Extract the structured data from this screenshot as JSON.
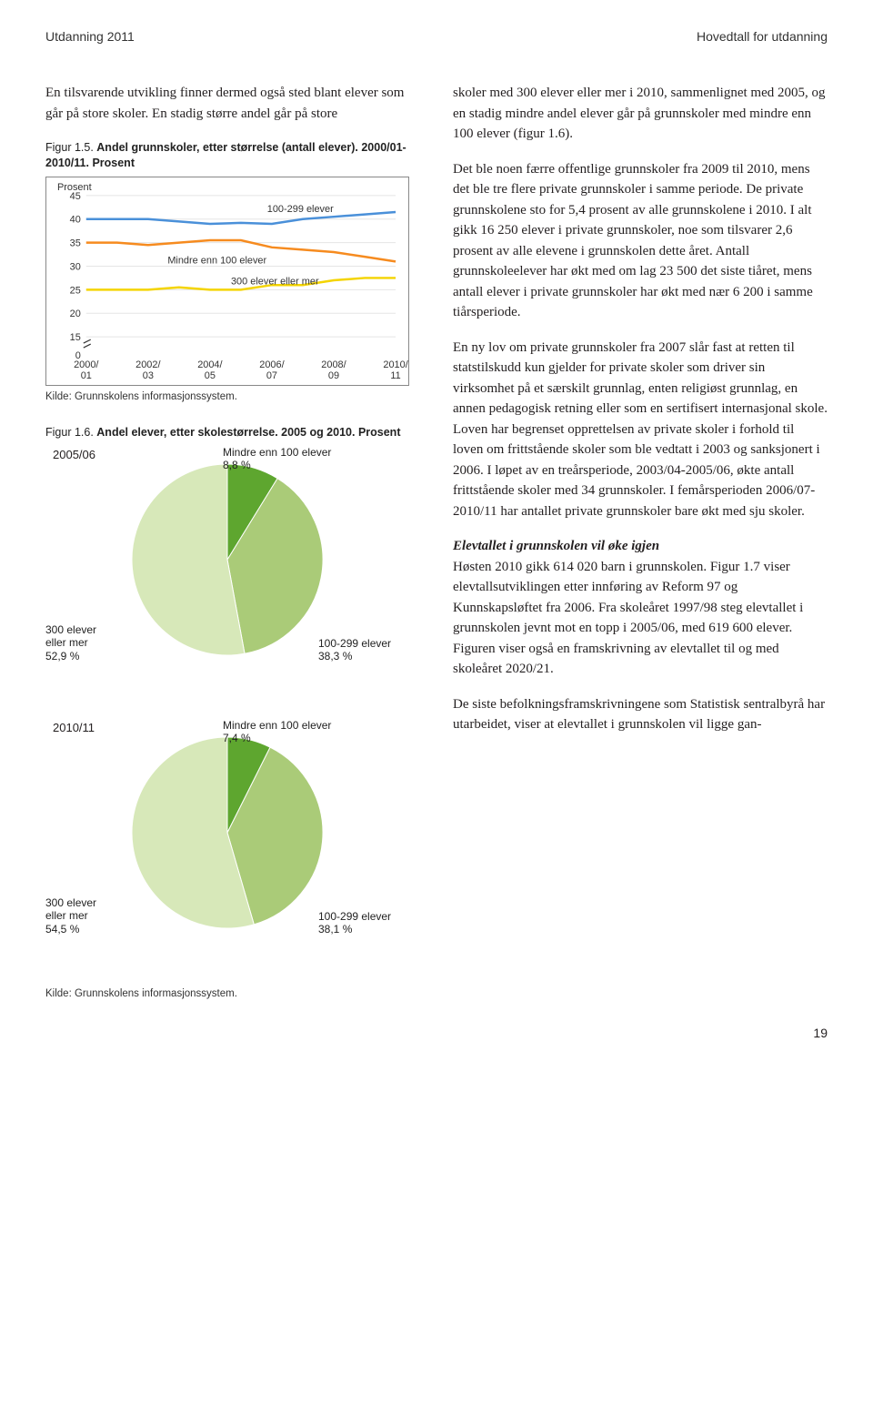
{
  "header": {
    "left": "Utdanning 2011",
    "right": "Hovedtall for utdanning"
  },
  "leftcol": {
    "intro": "En tilsvarende utvikling finner dermed også sted blant elever som går på store skoler. En stadig større andel går på store",
    "fig5": {
      "caption_prefix": "Figur 1.5. ",
      "caption_bold": "Andel grunnskoler, etter størrelse (antall elever). 2000/01-2010/11. Prosent",
      "yaxis_label": "Prosent",
      "source": "Kilde: Grunnskolens informasjonssystem.",
      "x_labels": [
        "2000/\n01",
        "2002/\n03",
        "2004/\n05",
        "2006/\n07",
        "2008/\n09",
        "2010/\n11"
      ],
      "y_ticks": [
        0,
        15,
        20,
        25,
        30,
        35,
        40,
        45
      ],
      "series": [
        {
          "name": "100-299 elever",
          "color": "#4a90d9",
          "values": [
            40,
            40,
            40,
            39.5,
            39,
            39.2,
            39,
            40,
            40.5,
            41,
            41.5
          ]
        },
        {
          "name": "Mindre enn 100 elever",
          "color": "#f68b1f",
          "values": [
            35,
            35,
            34.5,
            35,
            35.5,
            35.5,
            34,
            33.5,
            33,
            32,
            31
          ]
        },
        {
          "name": "300 elever eller mer",
          "color": "#f4d400",
          "values": [
            25,
            25,
            25,
            25.5,
            25,
            25,
            26,
            26,
            27,
            27.5,
            27.5
          ]
        }
      ],
      "annotations": {
        "a1": "100-299 elever",
        "a2": "Mindre enn 100 elever",
        "a3": "300 elever eller mer"
      },
      "colors": {
        "grid": "#e5e5e5",
        "axis": "#888",
        "bg": "#ffffff"
      }
    },
    "fig6": {
      "caption_prefix": "Figur 1.6. ",
      "caption_bold": "Andel elever, etter skolestørrelse. 2005 og 2010. Prosent",
      "pie1": {
        "year": "2005/06",
        "slices": [
          {
            "label": "Mindre enn 100 elever",
            "pct": 8.8,
            "color": "#5ea62f"
          },
          {
            "label": "100-299 elever",
            "pct": 38.3,
            "color": "#aacb78"
          },
          {
            "label": "300 elever eller mer",
            "pct": 52.9,
            "color": "#d7e8b9"
          }
        ],
        "label_top": "Mindre enn 100 elever\n8,8 %",
        "label_right": "100-299 elever\n38,3 %",
        "label_left": "300 elever\neller mer\n52,9 %"
      },
      "pie2": {
        "year": "2010/11",
        "slices": [
          {
            "label": "Mindre enn 100 elever",
            "pct": 7.4,
            "color": "#5ea62f"
          },
          {
            "label": "100-299 elever",
            "pct": 38.1,
            "color": "#aacb78"
          },
          {
            "label": "300 elever eller mer",
            "pct": 54.5,
            "color": "#d7e8b9"
          }
        ],
        "label_top": "Mindre enn 100 elever\n7,4 %",
        "label_right": "100-299 elever\n38,1 %",
        "label_left": "300 elever\neller mer\n54,5 %"
      },
      "source": "Kilde: Grunnskolens informasjonssystem."
    }
  },
  "rightcol": {
    "p1": "skoler med 300 elever eller mer i 2010, sammenlignet med 2005, og en stadig mindre andel elever går på grunnskoler med mindre enn 100 elever (figur 1.6).",
    "p2": "Det ble noen færre offentlige grunnskoler fra 2009 til 2010, mens det ble tre flere private grunnskoler i samme periode. De private grunnskolene sto for 5,4 prosent av alle grunnskolene i 2010. I alt gikk 16 250 elever i private grunnskoler, noe som tilsvarer 2,6 prosent av alle elevene i grunnskolen dette året. Antall grunnskoleelever har økt med om lag 23 500 det siste tiåret, mens antall elever i private grunnskoler har økt med nær 6 200 i samme tiårsperiode.",
    "p3": "En ny lov om private grunnskoler fra 2007 slår fast at retten til statstilskudd kun gjelder for private skoler som driver sin virksomhet på et særskilt grunnlag, enten religiøst grunnlag, en annen pedagogisk retning eller som en sertifisert internasjonal skole. Loven har begrenset opprettelsen av private skoler i forhold til loven om frittstående skoler som ble vedtatt i 2003 og sanksjonert i 2006. I løpet av en treårsperiode, 2003/04-2005/06, økte antall frittstående skoler med 34 grunnskoler. I femårsperioden 2006/07-2010/11 har antallet private grunnskoler bare økt med sju skoler.",
    "p4_head": "Elevtallet i grunnskolen vil øke igjen",
    "p4": "Høsten 2010 gikk 614 020 barn i grunnskolen. Figur 1.7 viser elevtallsutviklingen etter innføring av Reform 97 og Kunnskapsløftet fra 2006. Fra skoleåret 1997/98 steg elevtallet i grunnskolen jevnt mot en topp i 2005/06, med 619 600 elever. Figuren viser også en framskrivning av elevtallet til og med skoleåret 2020/21.",
    "p5": "De siste befolkningsframskrivningene som Statistisk sentralbyrå har utarbeidet, viser at elevtallet i grunnskolen vil ligge gan-"
  },
  "page_number": "19"
}
